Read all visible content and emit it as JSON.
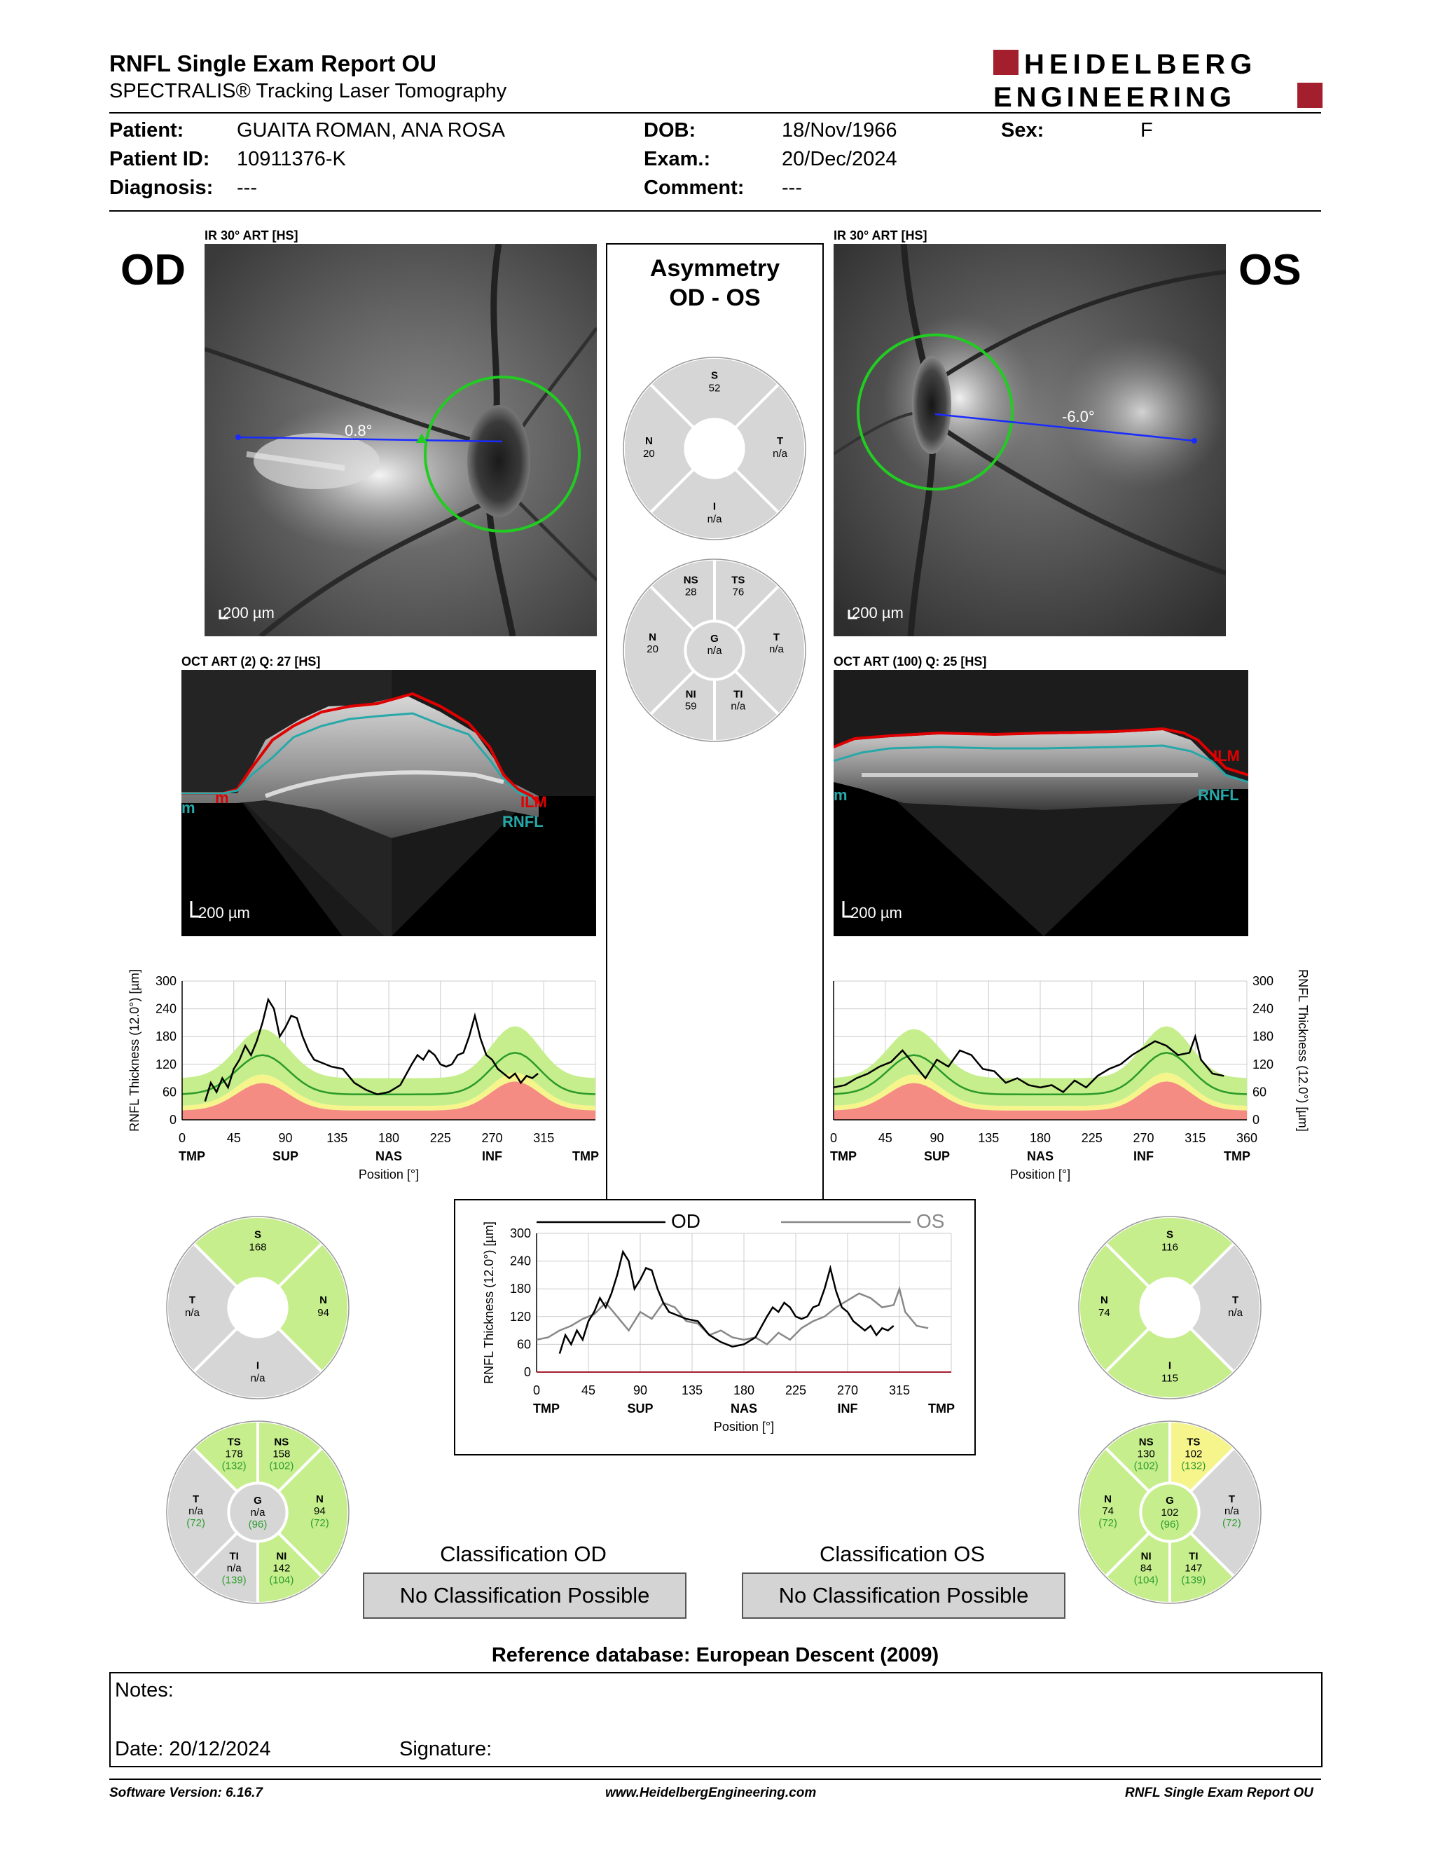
{
  "header": {
    "title": "RNFL Single Exam Report OU",
    "subtitle": "SPECTRALIS® Tracking Laser Tomography",
    "logo_line1": "HEIDELBERG",
    "logo_line2": "ENGINEERING"
  },
  "patient": {
    "patient_label": "Patient:",
    "patient_value": "GUAITA ROMAN, ANA ROSA",
    "id_label": "Patient ID:",
    "id_value": "10911376-K",
    "diagnosis_label": "Diagnosis:",
    "diagnosis_value": "---",
    "dob_label": "DOB:",
    "dob_value": "18/Nov/1966",
    "exam_label": "Exam.:",
    "exam_value": "20/Dec/2024",
    "comment_label": "Comment:",
    "comment_value": "---",
    "sex_label": "Sex:",
    "sex_value": "F"
  },
  "od": {
    "eye": "OD",
    "ir_label": "IR 30° ART [HS]",
    "angle": "0.8°",
    "scale": "200 µm",
    "oct_label": "OCT ART (2) Q: 27 [HS]",
    "ilm": "ILM",
    "rnfl": "RNFL",
    "m": "m",
    "sectors": {
      "S": "168",
      "T": "n/a",
      "N": "94",
      "I": "n/a"
    },
    "sectors6": {
      "TS": [
        "178",
        "(132)"
      ],
      "NS": [
        "158",
        "(102)"
      ],
      "T": [
        "n/a",
        "(72)"
      ],
      "G": [
        "n/a",
        "(96)"
      ],
      "N": [
        "94",
        "(72)"
      ],
      "TI": [
        "n/a",
        "(139)"
      ],
      "NI": [
        "142",
        "(104)"
      ]
    },
    "classification_title": "Classification OD",
    "classification": "No Classification Possible"
  },
  "os": {
    "eye": "OS",
    "ir_label": "IR 30° ART [HS]",
    "angle": "-6.0°",
    "scale": "200 µm",
    "oct_label": "OCT ART (100) Q: 25 [HS]",
    "ilm": "ILM",
    "rnfl": "RNFL",
    "m": "m",
    "sectors": {
      "S": "116",
      "N": "74",
      "T": "n/a",
      "I": "115"
    },
    "sectors6": {
      "NS": [
        "130",
        "(102)"
      ],
      "TS": [
        "102",
        "(132)"
      ],
      "N": [
        "74",
        "(72)"
      ],
      "G": [
        "102",
        "(96)"
      ],
      "T": [
        "n/a",
        "(72)"
      ],
      "NI": [
        "84",
        "(104)"
      ],
      "TI": [
        "147",
        "(139)"
      ]
    },
    "classification_title": "Classification OS",
    "classification": "No Classification Possible"
  },
  "asymmetry": {
    "title1": "Asymmetry",
    "title2": "OD - OS",
    "sectors": {
      "S": "52",
      "N": "20",
      "T": "n/a",
      "I": "n/a"
    },
    "sectors6": {
      "NS": "28",
      "TS": "76",
      "N": "20",
      "G": "n/a",
      "T": "n/a",
      "NI": "59",
      "TI": "n/a"
    },
    "legend_od": "OD",
    "legend_os": "OS"
  },
  "colors": {
    "green": "#c6ee8c",
    "yellow": "#f6f58c",
    "red": "#f48c84",
    "gray": "#d6d6d6",
    "teal": "#2aa3a3"
  },
  "chart_data": [
    {
      "type": "line",
      "name": "OD RNFL thickness profile",
      "ylabel": "RNFL Thickness (12.0°) [µm]",
      "xlabel": "Position [°]",
      "ylim": [
        0,
        300
      ],
      "xlim": [
        0,
        360
      ],
      "yticks": [
        "0",
        "60",
        "120",
        "180",
        "240",
        "300"
      ],
      "xticks": [
        "0",
        "45",
        "90",
        "135",
        "180",
        "225",
        "270",
        "315"
      ],
      "region_labels": [
        "TMP",
        "SUP",
        "NAS",
        "INF",
        "TMP"
      ],
      "x": [
        20,
        25,
        30,
        35,
        40,
        45,
        50,
        55,
        60,
        65,
        70,
        75,
        80,
        85,
        90,
        95,
        100,
        105,
        110,
        115,
        120,
        130,
        140,
        150,
        160,
        170,
        180,
        190,
        200,
        205,
        210,
        215,
        220,
        225,
        230,
        235,
        240,
        245,
        250,
        255,
        260,
        265,
        270,
        275,
        280,
        285,
        290,
        295,
        300,
        305,
        310
      ],
      "values": [
        40,
        80,
        60,
        90,
        70,
        110,
        130,
        160,
        140,
        170,
        210,
        260,
        240,
        180,
        200,
        225,
        220,
        180,
        150,
        130,
        125,
        115,
        110,
        80,
        65,
        55,
        60,
        75,
        120,
        140,
        130,
        150,
        140,
        120,
        115,
        120,
        140,
        145,
        180,
        225,
        175,
        140,
        130,
        110,
        100,
        90,
        100,
        80,
        95,
        90,
        100
      ]
    },
    {
      "type": "line",
      "name": "OS RNFL thickness profile",
      "ylabel": "RNFL Thickness (12.0°) [µm]",
      "xlabel": "Position [°]",
      "ylim": [
        0,
        300
      ],
      "xlim": [
        0,
        360
      ],
      "yticks": [
        "0",
        "60",
        "120",
        "180",
        "240",
        "300"
      ],
      "xticks": [
        "0",
        "45",
        "90",
        "135",
        "180",
        "225",
        "270",
        "315",
        "360"
      ],
      "region_labels": [
        "TMP",
        "SUP",
        "NAS",
        "INF",
        "TMP"
      ],
      "x": [
        0,
        10,
        20,
        30,
        40,
        50,
        60,
        70,
        80,
        90,
        100,
        110,
        120,
        130,
        140,
        150,
        160,
        170,
        180,
        190,
        200,
        210,
        220,
        230,
        240,
        250,
        260,
        270,
        280,
        290,
        300,
        310,
        315,
        320,
        330,
        340
      ],
      "values": [
        70,
        75,
        90,
        100,
        115,
        125,
        150,
        120,
        90,
        130,
        115,
        150,
        140,
        110,
        105,
        80,
        90,
        75,
        70,
        75,
        60,
        85,
        70,
        95,
        110,
        120,
        140,
        155,
        170,
        160,
        140,
        145,
        180,
        130,
        100,
        95
      ]
    }
  ]
}
